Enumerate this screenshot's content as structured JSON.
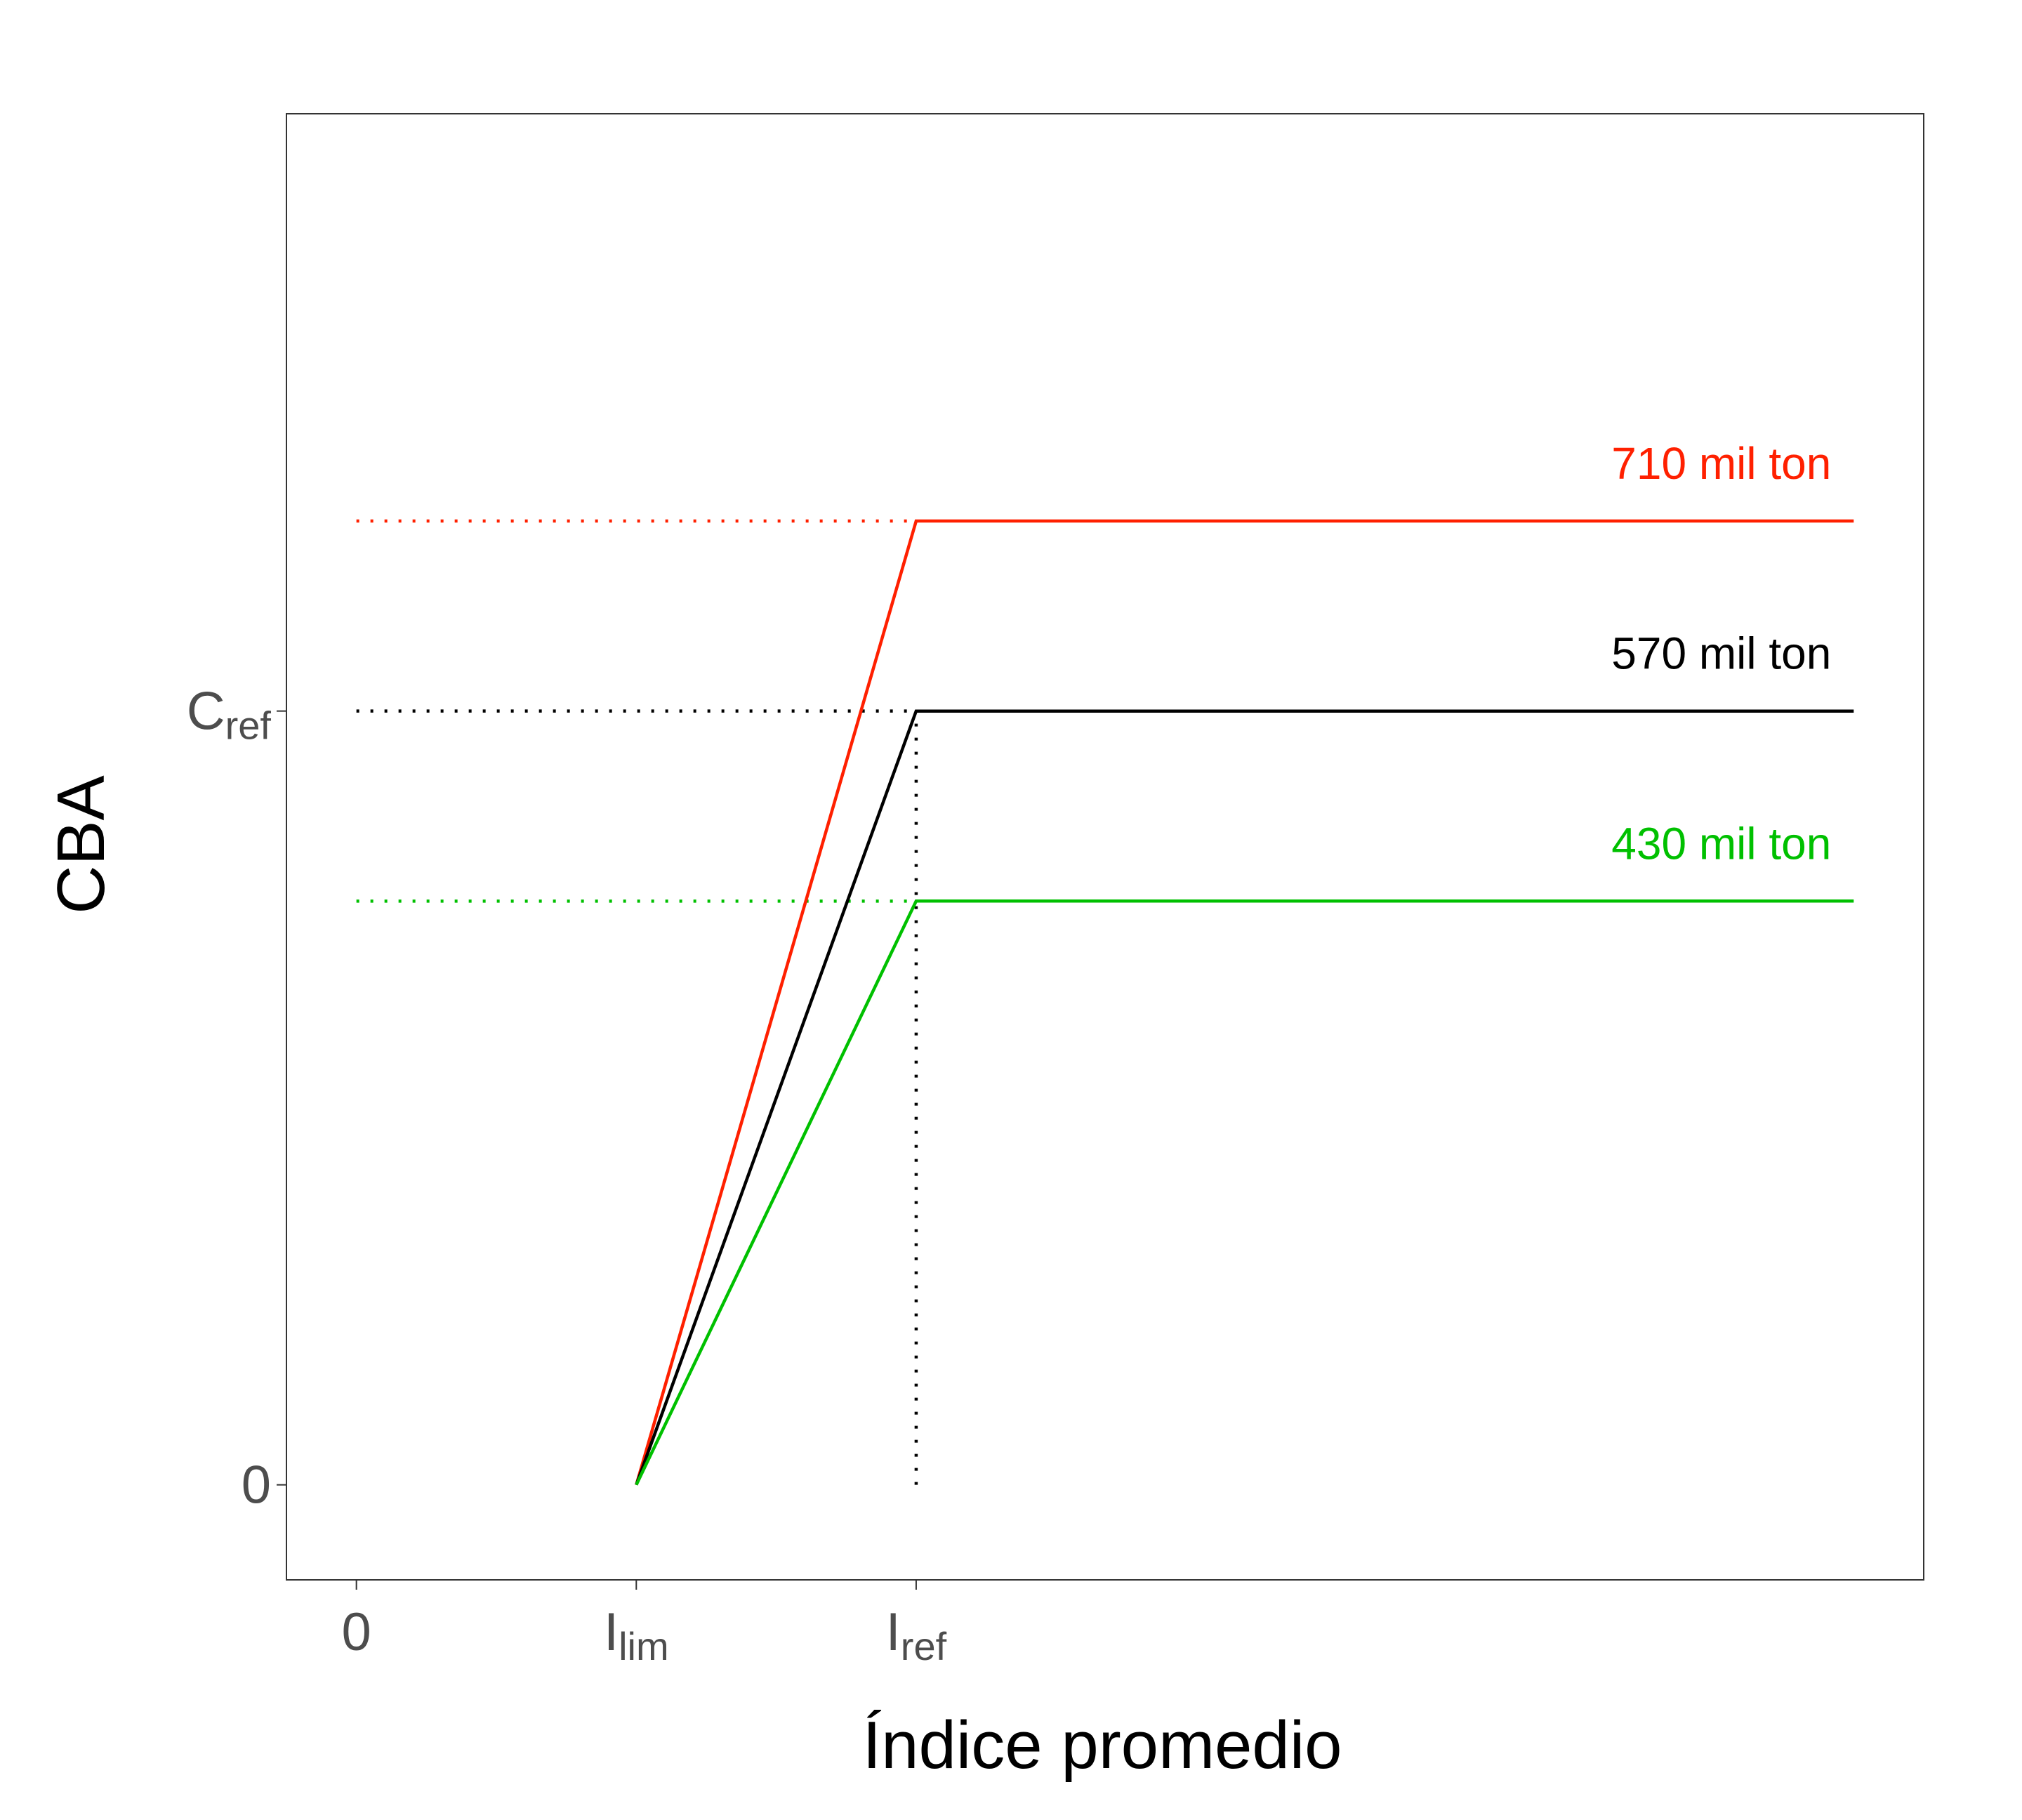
{
  "chart_data": {
    "type": "line",
    "xlabel": "Índice promedio",
    "ylabel": "CBA",
    "x_ticks": [
      {
        "value": 0,
        "main": "0",
        "sub": ""
      },
      {
        "value": 1,
        "main": "I",
        "sub": "lim"
      },
      {
        "value": 2,
        "main": "I",
        "sub": "ref"
      }
    ],
    "y_ticks": [
      {
        "value": 0,
        "main": "0",
        "sub": ""
      },
      {
        "value": 570,
        "main": "C",
        "sub": "ref"
      }
    ],
    "xlim": [
      -0.25,
      5.6
    ],
    "ylim": [
      -70,
      1010
    ],
    "grid": false,
    "series": [
      {
        "name": "710 mil ton",
        "color": "#ff2000",
        "x": [
          1,
          2,
          5.35
        ],
        "y": [
          0,
          710,
          710
        ]
      },
      {
        "name": "570 mil ton",
        "color": "#000000",
        "x": [
          1,
          2,
          5.35
        ],
        "y": [
          0,
          570,
          570
        ]
      },
      {
        "name": "430 mil ton",
        "color": "#00c000",
        "x": [
          1,
          2,
          5.35
        ],
        "y": [
          0,
          430,
          430
        ]
      }
    ],
    "reference_lines": [
      {
        "orientation": "horizontal",
        "y": 710,
        "x_from": 0,
        "x_to": 2,
        "color": "#ff2000",
        "style": "dotted"
      },
      {
        "orientation": "horizontal",
        "y": 570,
        "x_from": 0,
        "x_to": 2,
        "color": "#000000",
        "style": "dotted"
      },
      {
        "orientation": "horizontal",
        "y": 430,
        "x_from": 0,
        "x_to": 2,
        "color": "#00c000",
        "style": "dotted"
      },
      {
        "orientation": "vertical",
        "x": 2,
        "y_from": 0,
        "y_to": 570,
        "color": "#000000",
        "style": "dotted"
      }
    ]
  }
}
